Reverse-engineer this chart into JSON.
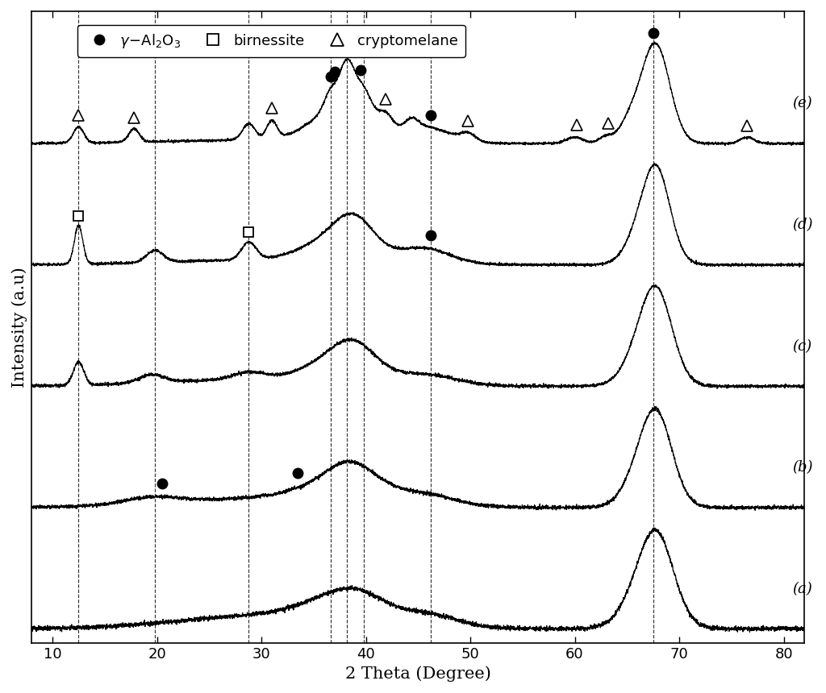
{
  "xlabel": "2 Theta (Degree)",
  "ylabel": "Intensity (a.u)",
  "xlim": [
    8,
    82
  ],
  "xticks": [
    10,
    20,
    30,
    40,
    50,
    60,
    70,
    80
  ],
  "background_color": "#ffffff",
  "dashed_lines": [
    12.5,
    19.8,
    28.8,
    36.6,
    38.2,
    39.8,
    46.2,
    67.5
  ],
  "curve_color": "#000000",
  "curve_offsets": [
    0.0,
    0.19,
    0.38,
    0.57,
    0.76
  ],
  "curve_labels": [
    "(a)",
    "(b)",
    "(c)",
    "(d)",
    "(e)"
  ],
  "figsize": [
    10.24,
    8.6
  ],
  "dpi": 100
}
